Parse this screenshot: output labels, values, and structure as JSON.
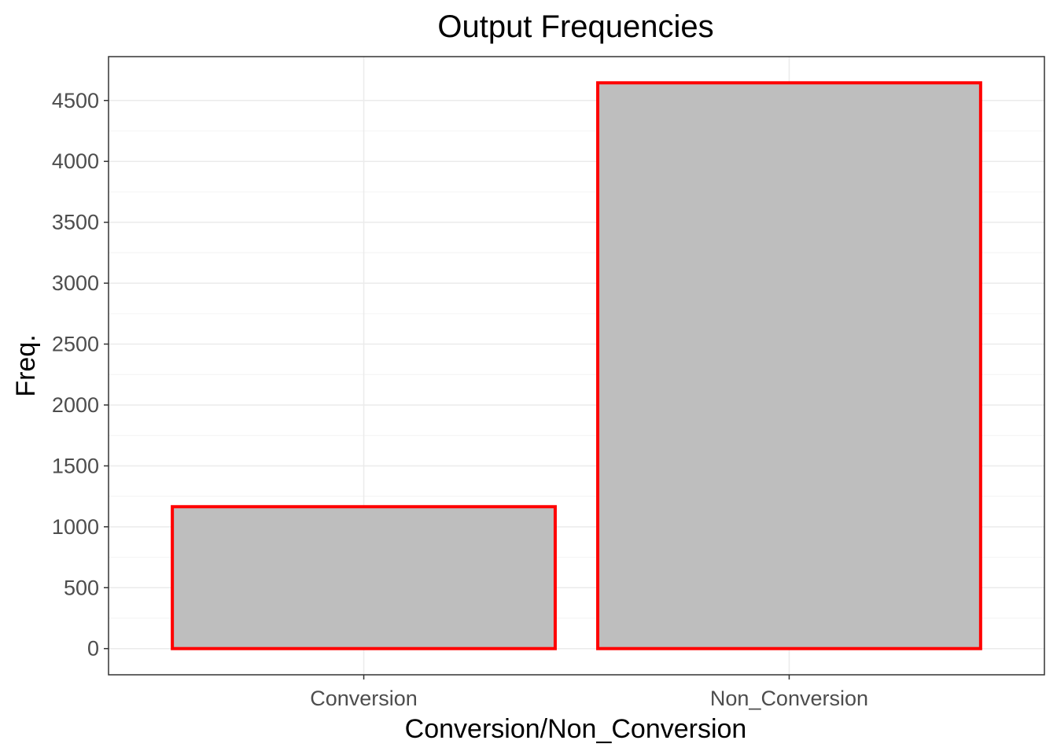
{
  "chart_data": {
    "type": "bar",
    "title": "Output Frequencies",
    "xlabel": "Conversion/Non_Conversion",
    "ylabel": "Freq.",
    "categories": [
      "Conversion",
      "Non_Conversion"
    ],
    "values": [
      1165,
      4645
    ],
    "ylim": [
      -215,
      4860
    ],
    "yticks": [
      0,
      500,
      1000,
      1500,
      2000,
      2500,
      3000,
      3500,
      4000,
      4500
    ],
    "grid": true,
    "legend": "none",
    "colors": {
      "bar_fill": "#bebebe",
      "bar_outline": "#ff0000",
      "grid_major": "#ebebeb",
      "grid_minor": "#f5f5f5",
      "panel_border": "#333333",
      "tick_label": "#4d4d4d"
    }
  }
}
